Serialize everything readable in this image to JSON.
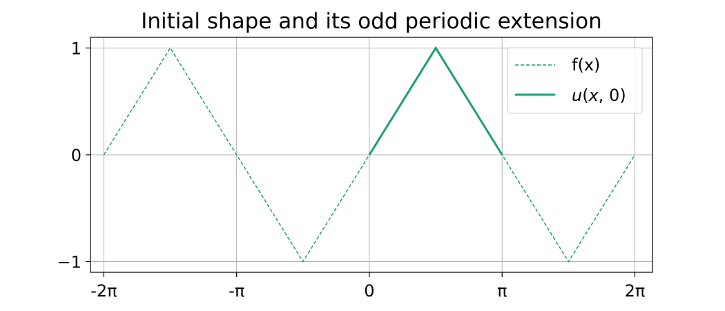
{
  "chart_data": {
    "type": "line",
    "title": "Initial shape and its odd periodic extension",
    "xlabel": "",
    "ylabel": "",
    "xlim": [
      -6.6,
      6.7
    ],
    "ylim": [
      -1.1,
      1.1
    ],
    "grid": true,
    "legend_position": "top-right",
    "x_ticks": [
      {
        "value": -6.283185,
        "label": "-2π"
      },
      {
        "value": -3.141593,
        "label": "-π"
      },
      {
        "value": 0,
        "label": "0"
      },
      {
        "value": 3.141593,
        "label": "π"
      },
      {
        "value": 6.283185,
        "label": "2π"
      }
    ],
    "y_ticks": [
      {
        "value": 1,
        "label": "1"
      },
      {
        "value": 0,
        "label": "0"
      },
      {
        "value": -1,
        "label": "−1"
      }
    ],
    "series": [
      {
        "name": "f(x)",
        "style": "dashed",
        "color": "#1b9e77",
        "x": [
          -6.283185,
          -4.712389,
          -3.141593,
          -1.570796,
          0,
          1.570796,
          3.141593,
          4.712389,
          6.283185
        ],
        "y": [
          0,
          1,
          0,
          -1,
          0,
          1,
          0,
          -1,
          0
        ]
      },
      {
        "name": "u(x, 0)",
        "style": "solid",
        "color": "#1b9e77",
        "x": [
          0,
          1.570796,
          3.141593
        ],
        "y": [
          0,
          1,
          0
        ]
      }
    ]
  }
}
